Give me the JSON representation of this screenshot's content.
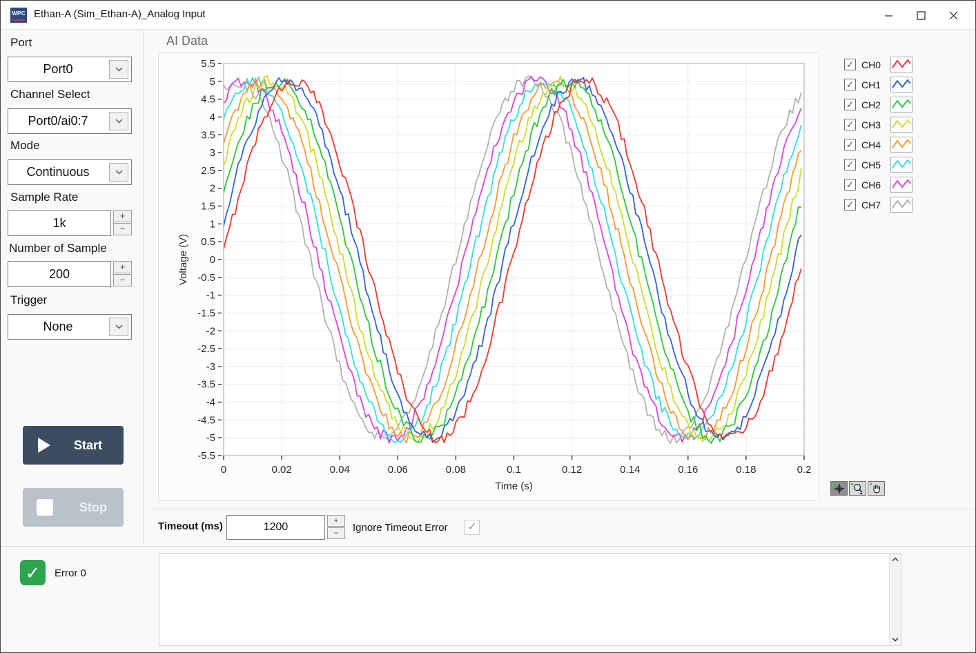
{
  "window": {
    "title": "Ethan-A (Sim_Ethan-A)_Analog Input",
    "icon_text": "WPC"
  },
  "sidebar": {
    "port": {
      "label": "Port",
      "value": "Port0"
    },
    "channel_select": {
      "label": "Channel Select",
      "value": "Port0/ai0:7"
    },
    "mode": {
      "label": "Mode",
      "value": "Continuous"
    },
    "sample_rate": {
      "label": "Sample Rate",
      "value": "1k"
    },
    "num_samples": {
      "label": "Number of Sample",
      "value": "200"
    },
    "trigger": {
      "label": "Trigger",
      "value": "None"
    },
    "start_label": "Start",
    "stop_label": "Stop"
  },
  "spinner": {
    "plus": "+",
    "minus": "−"
  },
  "chart_data": {
    "type": "line",
    "title": "AI Data",
    "xlabel": "Time (s)",
    "ylabel": "Voltage (V)",
    "xlim": [
      0,
      0.2
    ],
    "ylim": [
      -5.5,
      5.5
    ],
    "grid": true,
    "legend_position": "right",
    "xticks": [
      "0",
      "0.02",
      "0.04",
      "0.06",
      "0.08",
      "0.1",
      "0.12",
      "0.14",
      "0.16",
      "0.18",
      "0.2"
    ],
    "yticks": [
      "5.5",
      "5",
      "4.5",
      "4",
      "3.5",
      "3",
      "2.5",
      "2",
      "1.5",
      "1",
      "0.5",
      "0",
      "-0.5",
      "-1",
      "-1.5",
      "-2",
      "-2.5",
      "-3",
      "-3.5",
      "-4",
      "-4.5",
      "-5",
      "-5.5"
    ],
    "sample_count": 200,
    "sample_interval_s": 0.001,
    "waveform": {
      "shape": "sine",
      "amplitude": 5,
      "frequency_hz": 10,
      "phase_base_rad": 0.04,
      "phase_step_rad": 0.175,
      "noise_amplitude": 0.17
    },
    "series": [
      {
        "name": "CH0",
        "color": "#f2392c",
        "checked": true
      },
      {
        "name": "CH1",
        "color": "#3263d9",
        "checked": true
      },
      {
        "name": "CH2",
        "color": "#2cc93c",
        "checked": true
      },
      {
        "name": "CH3",
        "color": "#ccdd2e",
        "checked": true
      },
      {
        "name": "CH4",
        "color": "#fb9a32",
        "checked": true
      },
      {
        "name": "CH5",
        "color": "#33dfdf",
        "checked": true
      },
      {
        "name": "CH6",
        "color": "#d944e5",
        "checked": true
      },
      {
        "name": "CH7",
        "color": "#b2b2b2",
        "checked": true
      }
    ]
  },
  "palette": {
    "tools": [
      "cursor-tool",
      "zoom-tool",
      "pan-tool"
    ],
    "selected": "cursor-tool"
  },
  "timeout": {
    "label": "Timeout (ms)",
    "value": "1200",
    "ignore_label": "Ignore Timeout Error",
    "ignore_checked": true
  },
  "error": {
    "label": "Error 0",
    "checked": true,
    "message": ""
  },
  "colors": {
    "start_button": "#3c4d61",
    "stop_button": "#b9c1c9",
    "error_green": "#2da44e",
    "check_mark": "✓"
  }
}
